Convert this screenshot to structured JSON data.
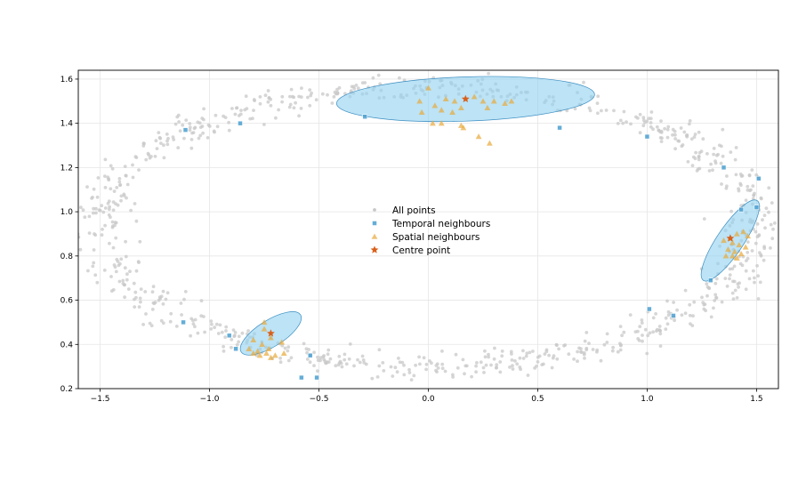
{
  "chart_data": {
    "type": "scatter",
    "title": "",
    "xlabel": "",
    "ylabel": "",
    "xlim": [
      -1.6,
      1.6
    ],
    "ylim": [
      0.2,
      1.64
    ],
    "grid": true,
    "legend_position": "center",
    "x_ticks": [
      "−1.5",
      "−1.0",
      "−0.5",
      "0.0",
      "0.5",
      "1.0",
      "1.5"
    ],
    "x_tick_values": [
      -1.5,
      -1.0,
      -0.5,
      0.0,
      0.5,
      1.0,
      1.5
    ],
    "y_ticks": [
      "0.2",
      "0.4",
      "0.6",
      "0.8",
      "1.0",
      "1.2",
      "1.4",
      "1.6"
    ],
    "y_tick_values": [
      0.2,
      0.4,
      0.6,
      0.8,
      1.0,
      1.2,
      1.4,
      1.6
    ],
    "background_ring": {
      "description": "noisy elliptical ring of points",
      "center": [
        0.0,
        0.93
      ],
      "radius_x": 1.5,
      "radius_y": 0.63,
      "noise": 0.045,
      "count": 900
    },
    "series": [
      {
        "name": "All points",
        "marker": "point",
        "color": "#c8c8c8",
        "points": []
      },
      {
        "name": "Temporal neighbours",
        "marker": "square",
        "color": "#4a9fd0",
        "points": [
          [
            -1.11,
            1.37
          ],
          [
            -0.86,
            1.4
          ],
          [
            -0.29,
            1.43
          ],
          [
            0.6,
            1.38
          ],
          [
            1.0,
            1.34
          ],
          [
            1.35,
            1.2
          ],
          [
            1.51,
            1.15
          ],
          [
            1.43,
            1.01
          ],
          [
            1.5,
            1.02
          ],
          [
            1.29,
            0.69
          ],
          [
            1.01,
            0.56
          ],
          [
            1.12,
            0.53
          ],
          [
            -1.12,
            0.5
          ],
          [
            -0.91,
            0.44
          ],
          [
            -0.88,
            0.38
          ],
          [
            -0.54,
            0.35
          ],
          [
            -0.58,
            0.25
          ],
          [
            -0.51,
            0.25
          ]
        ]
      },
      {
        "name": "Spatial neighbours",
        "marker": "triangle",
        "color": "#e8a93a",
        "points": [
          [
            0.0,
            1.56
          ],
          [
            -0.04,
            1.5
          ],
          [
            0.03,
            1.48
          ],
          [
            0.08,
            1.51
          ],
          [
            0.12,
            1.5
          ],
          [
            0.21,
            1.52
          ],
          [
            0.25,
            1.5
          ],
          [
            0.3,
            1.5
          ],
          [
            0.35,
            1.49
          ],
          [
            0.38,
            1.5
          ],
          [
            0.15,
            1.47
          ],
          [
            0.06,
            1.46
          ],
          [
            -0.03,
            1.45
          ],
          [
            0.11,
            1.45
          ],
          [
            0.27,
            1.47
          ],
          [
            0.02,
            1.4
          ],
          [
            0.06,
            1.4
          ],
          [
            0.15,
            1.39
          ],
          [
            0.16,
            1.38
          ],
          [
            0.23,
            1.34
          ],
          [
            0.28,
            1.31
          ],
          [
            1.38,
            0.88
          ],
          [
            1.41,
            0.9
          ],
          [
            1.44,
            0.91
          ],
          [
            1.46,
            0.89
          ],
          [
            1.35,
            0.87
          ],
          [
            1.39,
            0.86
          ],
          [
            1.42,
            0.85
          ],
          [
            1.45,
            0.84
          ],
          [
            1.37,
            0.83
          ],
          [
            1.4,
            0.82
          ],
          [
            1.43,
            0.81
          ],
          [
            1.39,
            0.8
          ],
          [
            1.41,
            0.79
          ],
          [
            1.36,
            0.8
          ],
          [
            -0.75,
            0.5
          ],
          [
            -0.75,
            0.47
          ],
          [
            -0.72,
            0.43
          ],
          [
            -0.67,
            0.41
          ],
          [
            -0.8,
            0.42
          ],
          [
            -0.76,
            0.4
          ],
          [
            -0.82,
            0.38
          ],
          [
            -0.78,
            0.37
          ],
          [
            -0.74,
            0.36
          ],
          [
            -0.7,
            0.35
          ],
          [
            -0.72,
            0.34
          ],
          [
            -0.77,
            0.35
          ],
          [
            -0.66,
            0.36
          ],
          [
            -0.8,
            0.36
          ],
          [
            -0.73,
            0.38
          ]
        ]
      },
      {
        "name": "Centre point",
        "marker": "star",
        "color": "#d9601a",
        "points": [
          [
            0.17,
            1.51
          ],
          [
            1.38,
            0.88
          ],
          [
            -0.72,
            0.45
          ]
        ]
      }
    ],
    "ellipses": [
      {
        "center": [
          0.17,
          1.51
        ],
        "radius_x": 0.59,
        "radius_y": 0.1,
        "angle_deg": -2,
        "color": "#8fd0f0"
      },
      {
        "center": [
          1.38,
          0.87
        ],
        "radius_x": 0.22,
        "radius_y": 0.06,
        "angle_deg": -56,
        "color": "#8fd0f0"
      },
      {
        "center": [
          -0.72,
          0.45
        ],
        "radius_x": 0.16,
        "radius_y": 0.06,
        "angle_deg": -32,
        "color": "#8fd0f0"
      }
    ]
  }
}
